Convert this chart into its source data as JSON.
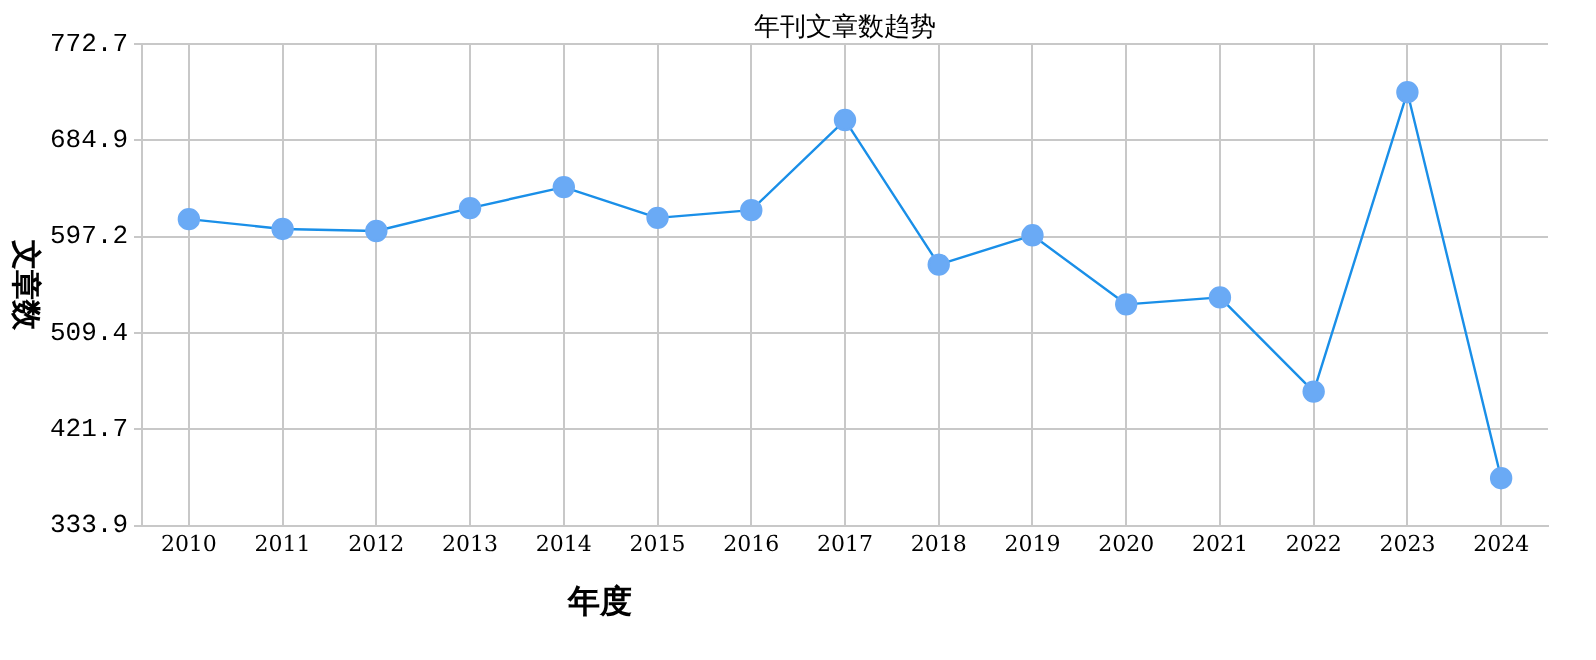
{
  "chart_data": {
    "type": "line",
    "title": "年刊文章数趋势",
    "xlabel": "年度",
    "ylabel": "文章数",
    "categories": [
      "2010",
      "2011",
      "2012",
      "2013",
      "2014",
      "2015",
      "2016",
      "2017",
      "2018",
      "2019",
      "2020",
      "2021",
      "2022",
      "2023",
      "2024"
    ],
    "series": [
      {
        "color": "#1a8fe8",
        "values": [
          613.1,
          604.2,
          602.3,
          623.2,
          642.3,
          614.3,
          621.3,
          703.4,
          571.7,
          598.4,
          535.5,
          541.8,
          456.0,
          728.8,
          377.1
        ]
      }
    ],
    "ylim": [
      333.9,
      772.7
    ],
    "yticks": [
      333.9,
      421.7,
      509.4,
      597.2,
      684.9,
      772.7
    ],
    "grid": true,
    "legend": false,
    "marker": "circle",
    "line_style": "solid"
  }
}
